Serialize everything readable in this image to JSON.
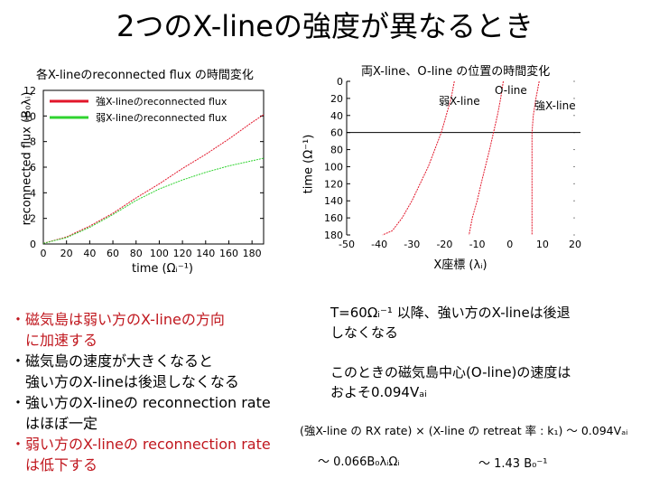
{
  "slide": {
    "title": "2つのX-lineの強度が異なるとき"
  },
  "left_plot": {
    "title": "各X-lineのreconnected flux の時間変化",
    "ylabel": "reconnected flux (B₀λᵢ)",
    "xlabel": "time (Ωᵢ⁻¹)"
  },
  "right_plot": {
    "title": "両X-line、O-line の位置の時間変化",
    "ylabel": "time (Ω⁻¹)",
    "xlabel": "X座標 (λᵢ)",
    "annotations": {
      "weak": "弱X-line",
      "oline": "O-line",
      "strong": "強X-line"
    }
  },
  "chart_data": [
    {
      "type": "line",
      "title": "各X-lineのreconnected flux の時間変化",
      "xlabel": "time (Ωᵢ⁻¹)",
      "ylabel": "reconnected flux (B₀λᵢ)",
      "xlim": [
        0,
        190
      ],
      "ylim": [
        0,
        12
      ],
      "xticks": [
        "0",
        "20",
        "40",
        "60",
        "80",
        "100",
        "120",
        "140",
        "160",
        "180"
      ],
      "yticks": [
        "0",
        "2",
        "4",
        "6",
        "8",
        "10",
        "12"
      ],
      "legend_position": "top-left",
      "series": [
        {
          "name": "強X-lineのreconnected flux",
          "color": "#e2162a",
          "x": [
            0,
            20,
            40,
            60,
            80,
            100,
            120,
            140,
            160,
            180,
            190
          ],
          "y": [
            0.05,
            0.55,
            1.4,
            2.4,
            3.6,
            4.7,
            5.9,
            7.0,
            8.2,
            9.5,
            10.1
          ]
        },
        {
          "name": "弱X-lineのreconnected flux",
          "color": "#2fd32f",
          "x": [
            0,
            20,
            40,
            60,
            80,
            100,
            120,
            140,
            160,
            180,
            190
          ],
          "y": [
            0.05,
            0.5,
            1.3,
            2.3,
            3.4,
            4.3,
            5.0,
            5.6,
            6.1,
            6.5,
            6.7
          ]
        }
      ]
    },
    {
      "type": "line",
      "title": "両X-line、O-line の位置の時間変化",
      "xlabel": "X座標 (λᵢ)",
      "ylabel": "time (Ω⁻¹)",
      "xlim": [
        -50,
        20
      ],
      "ylim": [
        0,
        180
      ],
      "y_inverted": true,
      "xticks": [
        "-50",
        "-40",
        "-30",
        "-20",
        "-10",
        "0",
        "10",
        "20"
      ],
      "yticks": [
        "0",
        "20",
        "40",
        "60",
        "80",
        "100",
        "120",
        "140",
        "160",
        "180"
      ],
      "reference_line_time": 60,
      "series": [
        {
          "name": "弱X-line",
          "color": "#e2162a",
          "x": [
            -17,
            -18,
            -19.5,
            -21,
            -23,
            -25,
            -27.5,
            -30,
            -33,
            -36,
            -39
          ],
          "y": [
            0,
            20,
            40,
            60,
            80,
            100,
            120,
            140,
            160,
            175,
            180
          ]
        },
        {
          "name": "O-line",
          "color": "#e2162a",
          "x": [
            -2,
            -2.8,
            -3.8,
            -5,
            -6.2,
            -7.5,
            -8.8,
            -10,
            -11.5,
            -12.5
          ],
          "y": [
            0,
            20,
            40,
            60,
            80,
            100,
            120,
            140,
            160,
            180
          ]
        },
        {
          "name": "強X-line",
          "color": "#e2162a",
          "x": [
            9,
            8,
            7.2,
            6.8,
            6.8,
            6.8,
            6.8,
            6.8,
            6.8,
            6.8
          ],
          "y": [
            0,
            20,
            40,
            60,
            80,
            100,
            120,
            140,
            160,
            180
          ]
        }
      ]
    }
  ],
  "bullets": [
    {
      "text": "・磁気島は弱い方のX-lineの方向",
      "color": "red"
    },
    {
      "text": "　に加速する",
      "color": "red"
    },
    {
      "text": "・磁気島の速度が大きくなると",
      "color": "black"
    },
    {
      "text": "　強い方のX-lineは後退しなくなる",
      "color": "black"
    },
    {
      "text": "・強い方のX-lineの reconnection rate",
      "color": "black"
    },
    {
      "text": "　はほぼ一定",
      "color": "black"
    },
    {
      "text": "・弱い方のX-lineの reconnection rate",
      "color": "red"
    },
    {
      "text": "　は低下する",
      "color": "red"
    }
  ],
  "right_text": {
    "line1": "T=60Ωᵢ⁻¹ 以降、強い方のX-lineは後退",
    "line2": "しなくなる",
    "line3": "このときの磁気島中心(O-line)の速度は",
    "line4": "およそ0.094Vₐᵢ",
    "formula": "(強X-line の RX rate) × (X-line の retreat 率 : k₁) 〜 0.094Vₐᵢ",
    "approx1": "〜 0.066B₀λᵢΩᵢ",
    "approx2": "〜 1.43 B₀⁻¹"
  }
}
